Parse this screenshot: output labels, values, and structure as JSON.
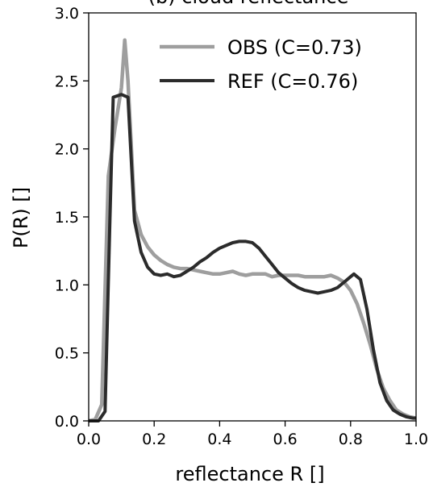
{
  "chart_data": {
    "type": "line",
    "title": "(b) cloud reflectance",
    "xlabel": "reflectance R []",
    "ylabel": "P(R) []",
    "xlim": [
      0.0,
      1.0
    ],
    "ylim": [
      0.0,
      3.0
    ],
    "x_ticks": [
      "0.0",
      "0.2",
      "0.4",
      "0.6",
      "0.8",
      "1.0"
    ],
    "y_ticks": [
      "0.0",
      "0.5",
      "1.0",
      "1.5",
      "2.0",
      "2.5",
      "3.0"
    ],
    "grid": false,
    "legend_position": "top-right",
    "series": [
      {
        "name": "OBS (C=0.73)",
        "color": "#9e9e9e",
        "x": [
          0.0,
          0.02,
          0.04,
          0.06,
          0.08,
          0.1,
          0.11,
          0.12,
          0.14,
          0.16,
          0.18,
          0.2,
          0.22,
          0.24,
          0.26,
          0.28,
          0.3,
          0.32,
          0.34,
          0.36,
          0.38,
          0.4,
          0.42,
          0.44,
          0.46,
          0.48,
          0.5,
          0.52,
          0.54,
          0.56,
          0.58,
          0.6,
          0.62,
          0.64,
          0.66,
          0.68,
          0.7,
          0.72,
          0.74,
          0.76,
          0.78,
          0.8,
          0.82,
          0.84,
          0.86,
          0.88,
          0.9,
          0.92,
          0.94,
          0.96,
          0.98,
          1.0
        ],
        "values": [
          0.0,
          0.01,
          0.12,
          1.8,
          2.15,
          2.45,
          2.8,
          2.5,
          1.55,
          1.37,
          1.28,
          1.22,
          1.18,
          1.15,
          1.13,
          1.12,
          1.12,
          1.11,
          1.1,
          1.09,
          1.08,
          1.08,
          1.09,
          1.1,
          1.08,
          1.07,
          1.08,
          1.08,
          1.08,
          1.06,
          1.07,
          1.07,
          1.07,
          1.07,
          1.06,
          1.06,
          1.06,
          1.06,
          1.07,
          1.05,
          1.02,
          0.96,
          0.86,
          0.72,
          0.56,
          0.38,
          0.24,
          0.15,
          0.08,
          0.05,
          0.03,
          0.02
        ]
      },
      {
        "name": "REF (C=0.76)",
        "color": "#2b2b2b",
        "x": [
          0.0,
          0.03,
          0.05,
          0.065,
          0.075,
          0.1,
          0.12,
          0.14,
          0.16,
          0.18,
          0.2,
          0.22,
          0.24,
          0.26,
          0.28,
          0.3,
          0.32,
          0.34,
          0.36,
          0.38,
          0.4,
          0.42,
          0.44,
          0.46,
          0.48,
          0.5,
          0.52,
          0.54,
          0.56,
          0.58,
          0.6,
          0.62,
          0.64,
          0.66,
          0.68,
          0.7,
          0.72,
          0.74,
          0.76,
          0.78,
          0.8,
          0.81,
          0.83,
          0.85,
          0.87,
          0.89,
          0.91,
          0.93,
          0.95,
          0.97,
          0.99,
          1.0
        ],
        "values": [
          0.0,
          0.0,
          0.07,
          1.5,
          2.38,
          2.4,
          2.38,
          1.47,
          1.24,
          1.13,
          1.08,
          1.07,
          1.08,
          1.06,
          1.07,
          1.1,
          1.13,
          1.17,
          1.2,
          1.24,
          1.27,
          1.29,
          1.31,
          1.32,
          1.32,
          1.31,
          1.27,
          1.21,
          1.15,
          1.09,
          1.05,
          1.01,
          0.98,
          0.96,
          0.95,
          0.94,
          0.95,
          0.96,
          0.98,
          1.02,
          1.06,
          1.08,
          1.04,
          0.82,
          0.52,
          0.28,
          0.15,
          0.08,
          0.05,
          0.03,
          0.02,
          0.02
        ]
      }
    ]
  }
}
